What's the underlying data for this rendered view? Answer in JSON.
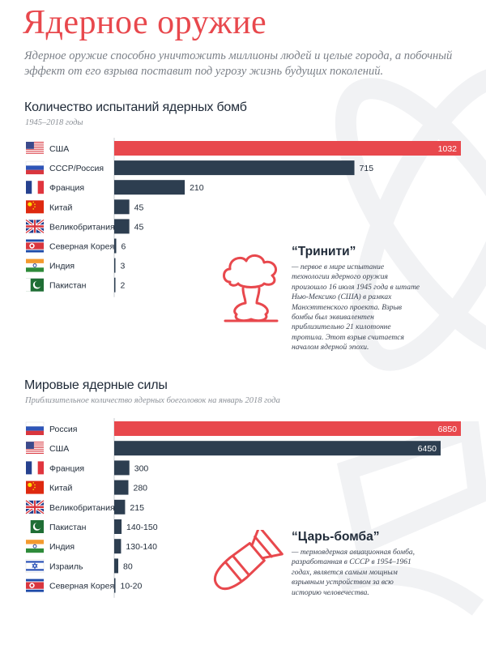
{
  "page": {
    "title": "Ядерное оружие",
    "subtitle": "Ядерное оружие способно уничтожить миллионы людей и целые города, а побочный эффект от его взрыва поставит под угрозу жизнь будущих поколений."
  },
  "colors": {
    "accent": "#e8484d",
    "bar_dark": "#2d3e50",
    "text_dark": "#1f2a38",
    "muted": "#8c9198"
  },
  "sections": [
    {
      "title": "Количество испытаний ядерных бомб",
      "subtitle": "1945–2018 годы",
      "info": {
        "title": "“Тринити”",
        "text": "— первое в мире испытание технологии ядерного оружия произошло 16 июля 1945 года в штате Нью-Мексико (США) в рамках Манхэттенского проекта. Взрыв бомбы был эквивалентен приблизительно 21 килотонне тротила. Этот взрыв считается началом ядерной эпохи.",
        "icon": "mushroom-cloud-icon"
      }
    },
    {
      "title": "Мировые ядерные силы",
      "subtitle": "Приблизительное количество ядерных боеголовок на январь 2018 года",
      "info": {
        "title": "“Царь-бомба”",
        "text": "— термоядерная авиационная бомба, разработанная в СССР в 1954–1961 годах, является самым мощным взрывным устройством за всю историю человечества.",
        "icon": "bomb-icon"
      }
    }
  ],
  "chart_data": [
    {
      "type": "bar",
      "orientation": "horizontal",
      "title": "Количество испытаний ядерных бомб",
      "subtitle": "1945–2018 годы",
      "categories": [
        "США",
        "СССР/Россия",
        "Франция",
        "Китай",
        "Великобритания",
        "Северная Корея",
        "Индия",
        "Пакистан"
      ],
      "flags": [
        "flag-usa",
        "flag-russia",
        "flag-france",
        "flag-china",
        "flag-uk",
        "flag-north-korea",
        "flag-india",
        "flag-pakistan"
      ],
      "values": [
        1032,
        715,
        210,
        45,
        45,
        6,
        3,
        2
      ],
      "labels": [
        "1032",
        "715",
        "210",
        "45",
        "45",
        "6",
        "3",
        "2"
      ],
      "highlight_index": 0,
      "xlim": [
        0,
        1032
      ],
      "grid": false
    },
    {
      "type": "bar",
      "orientation": "horizontal",
      "title": "Мировые ядерные силы",
      "subtitle": "Приблизительное количество ядерных боеголовок на январь 2018 года",
      "categories": [
        "Россия",
        "США",
        "Франция",
        "Китай",
        "Великобритания",
        "Пакистан",
        "Индия",
        "Израиль",
        "Северная Корея"
      ],
      "flags": [
        "flag-russia",
        "flag-usa",
        "flag-france",
        "flag-china",
        "flag-uk",
        "flag-pakistan",
        "flag-india",
        "flag-israel",
        "flag-north-korea"
      ],
      "values": [
        6850,
        6450,
        300,
        280,
        215,
        145,
        135,
        80,
        15
      ],
      "labels": [
        "6850",
        "6450",
        "300",
        "280",
        "215",
        "140-150",
        "130-140",
        "80",
        "10-20"
      ],
      "highlight_index": 0,
      "xlim": [
        0,
        6850
      ],
      "grid": false
    }
  ]
}
